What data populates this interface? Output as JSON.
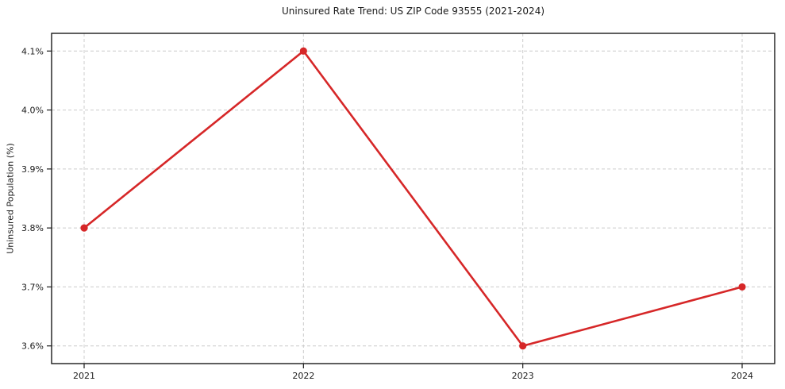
{
  "chart_data": {
    "type": "line",
    "title": "Uninsured Rate Trend: US ZIP Code 93555 (2021-2024)",
    "xlabel": "",
    "ylabel": "Uninsured Population (%)",
    "categories": [
      "2021",
      "2022",
      "2023",
      "2024"
    ],
    "values": [
      3.8,
      4.1,
      3.6,
      3.7
    ],
    "yticks": [
      3.6,
      3.7,
      3.8,
      3.9,
      4.0,
      4.1
    ],
    "ytick_labels": [
      "3.6%",
      "3.7%",
      "3.8%",
      "3.9%",
      "4.0%",
      "4.1%"
    ],
    "ylim": [
      3.57,
      4.13
    ],
    "grid": true,
    "legend": "none",
    "line_color": "#d62728",
    "marker_color": "#d62728",
    "grid_color": "#cccccc",
    "axis_color": "#1a1a1a",
    "text_color": "#1a1a1a"
  }
}
